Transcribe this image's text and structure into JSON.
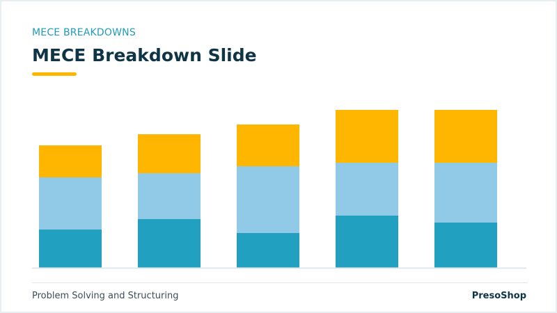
{
  "header": {
    "kicker": "MECE BREAKDOWNS",
    "title": "MECE Breakdown Slide"
  },
  "footer": {
    "left": "Problem Solving and Structuring",
    "right": "PresoShop"
  },
  "colors": {
    "accent": "#ffb600",
    "series": [
      "#22a0bf",
      "#91cae7",
      "#ffb600"
    ],
    "axis": "#dfe7ea"
  },
  "chart_data": {
    "type": "bar",
    "stacked": true,
    "categories": [
      "",
      "",
      "",
      "",
      ""
    ],
    "series": [
      {
        "values": [
          55,
          70,
          50,
          75,
          65
        ]
      },
      {
        "values": [
          75,
          66,
          96,
          76,
          86
        ]
      },
      {
        "values": [
          46,
          56,
          60,
          76,
          76
        ]
      }
    ],
    "ylim": [
      0,
      227
    ],
    "grid": false,
    "legend": "none"
  }
}
